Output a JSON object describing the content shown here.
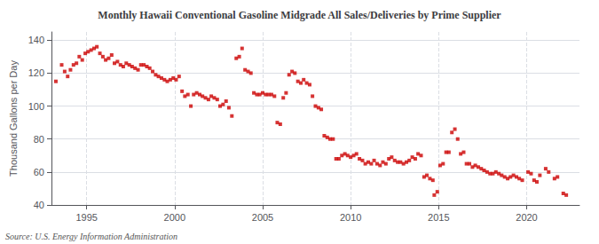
{
  "chart_data": {
    "type": "scatter",
    "title": "Monthly Hawaii Conventional Gasoline Midgrade All Sales/Deliveries by Prime Supplier",
    "ylabel": "Thousand Gallons per Day",
    "annotations": [
      "Source: U.S. Energy Information Administration"
    ],
    "color": "#cc0000",
    "marker": "square",
    "grid": true,
    "xlim": [
      1993.0,
      2023.0
    ],
    "ylim": [
      40,
      145
    ],
    "xticks": [
      1995,
      2000,
      2005,
      2010,
      2015,
      2020
    ],
    "yticks": [
      40,
      60,
      80,
      100,
      120,
      140
    ],
    "x": [
      1993.25,
      1993.58,
      1993.75,
      1993.92,
      1994.08,
      1994.25,
      1994.42,
      1994.58,
      1994.75,
      1994.92,
      1995.08,
      1995.25,
      1995.42,
      1995.58,
      1995.75,
      1995.92,
      1996.08,
      1996.25,
      1996.42,
      1996.58,
      1996.75,
      1996.92,
      1997.08,
      1997.25,
      1997.42,
      1997.58,
      1997.75,
      1997.92,
      1998.08,
      1998.25,
      1998.42,
      1998.58,
      1998.75,
      1998.92,
      1999.08,
      1999.25,
      1999.42,
      1999.58,
      1999.75,
      1999.92,
      2000.08,
      2000.25,
      2000.42,
      2000.58,
      2000.75,
      2000.92,
      2001.08,
      2001.25,
      2001.42,
      2001.58,
      2001.75,
      2001.92,
      2002.08,
      2002.25,
      2002.42,
      2002.58,
      2002.75,
      2002.92,
      2003.08,
      2003.25,
      2003.5,
      2003.67,
      2003.83,
      2004.0,
      2004.17,
      2004.33,
      2004.5,
      2004.67,
      2004.83,
      2005.0,
      2005.17,
      2005.33,
      2005.5,
      2005.67,
      2005.83,
      2006.0,
      2006.17,
      2006.33,
      2006.5,
      2006.67,
      2006.83,
      2007.0,
      2007.17,
      2007.33,
      2007.5,
      2007.67,
      2007.83,
      2008.0,
      2008.17,
      2008.33,
      2008.5,
      2008.67,
      2008.83,
      2009.0,
      2009.17,
      2009.33,
      2009.5,
      2009.67,
      2009.83,
      2010.0,
      2010.17,
      2010.33,
      2010.5,
      2010.67,
      2010.83,
      2011.0,
      2011.17,
      2011.33,
      2011.5,
      2011.67,
      2011.83,
      2012.0,
      2012.17,
      2012.33,
      2012.5,
      2012.67,
      2012.83,
      2013.0,
      2013.17,
      2013.33,
      2013.5,
      2013.67,
      2013.83,
      2014.0,
      2014.17,
      2014.33,
      2014.5,
      2014.67,
      2014.75,
      2014.92,
      2015.08,
      2015.25,
      2015.42,
      2015.58,
      2015.75,
      2015.92,
      2016.08,
      2016.25,
      2016.42,
      2016.58,
      2016.75,
      2016.92,
      2017.08,
      2017.25,
      2017.42,
      2017.58,
      2017.75,
      2017.92,
      2018.08,
      2018.25,
      2018.42,
      2018.58,
      2018.75,
      2018.92,
      2019.08,
      2019.25,
      2019.42,
      2019.58,
      2019.75,
      2020.08,
      2020.25,
      2020.42,
      2020.58,
      2020.75,
      2021.08,
      2021.25,
      2021.58,
      2021.75,
      2022.08,
      2022.25
    ],
    "values": [
      115,
      125,
      121,
      118,
      122,
      125,
      126,
      130,
      128,
      132,
      133,
      134,
      135,
      136,
      132,
      130,
      128,
      129,
      131,
      126,
      127,
      125,
      124,
      126,
      125,
      124,
      123,
      122,
      125,
      125,
      124,
      123,
      121,
      119,
      118,
      117,
      116,
      115,
      116,
      117,
      116,
      118,
      109,
      106,
      107,
      100,
      107,
      108,
      107,
      106,
      105,
      104,
      106,
      105,
      104,
      100,
      101,
      103,
      99,
      94,
      129,
      130,
      135,
      122,
      121,
      120,
      108,
      107,
      107,
      108,
      107,
      107,
      107,
      106,
      90,
      89,
      105,
      108,
      119,
      121,
      120,
      115,
      114,
      116,
      114,
      113,
      106,
      100,
      99,
      98,
      82,
      81,
      80,
      80,
      68,
      68,
      70,
      71,
      70,
      69,
      70,
      71,
      68,
      67,
      65,
      66,
      65,
      67,
      65,
      64,
      66,
      65,
      68,
      69,
      67,
      66,
      66,
      65,
      66,
      67,
      69,
      68,
      71,
      70,
      57,
      58,
      56,
      55,
      46,
      48,
      64,
      65,
      72,
      72,
      84,
      86,
      80,
      71,
      72,
      65,
      65,
      63,
      64,
      63,
      62,
      61,
      60,
      59,
      59,
      60,
      59,
      58,
      57,
      56,
      57,
      58,
      57,
      56,
      55,
      60,
      59,
      55,
      54,
      58,
      62,
      60,
      56,
      57,
      47,
      46
    ]
  }
}
